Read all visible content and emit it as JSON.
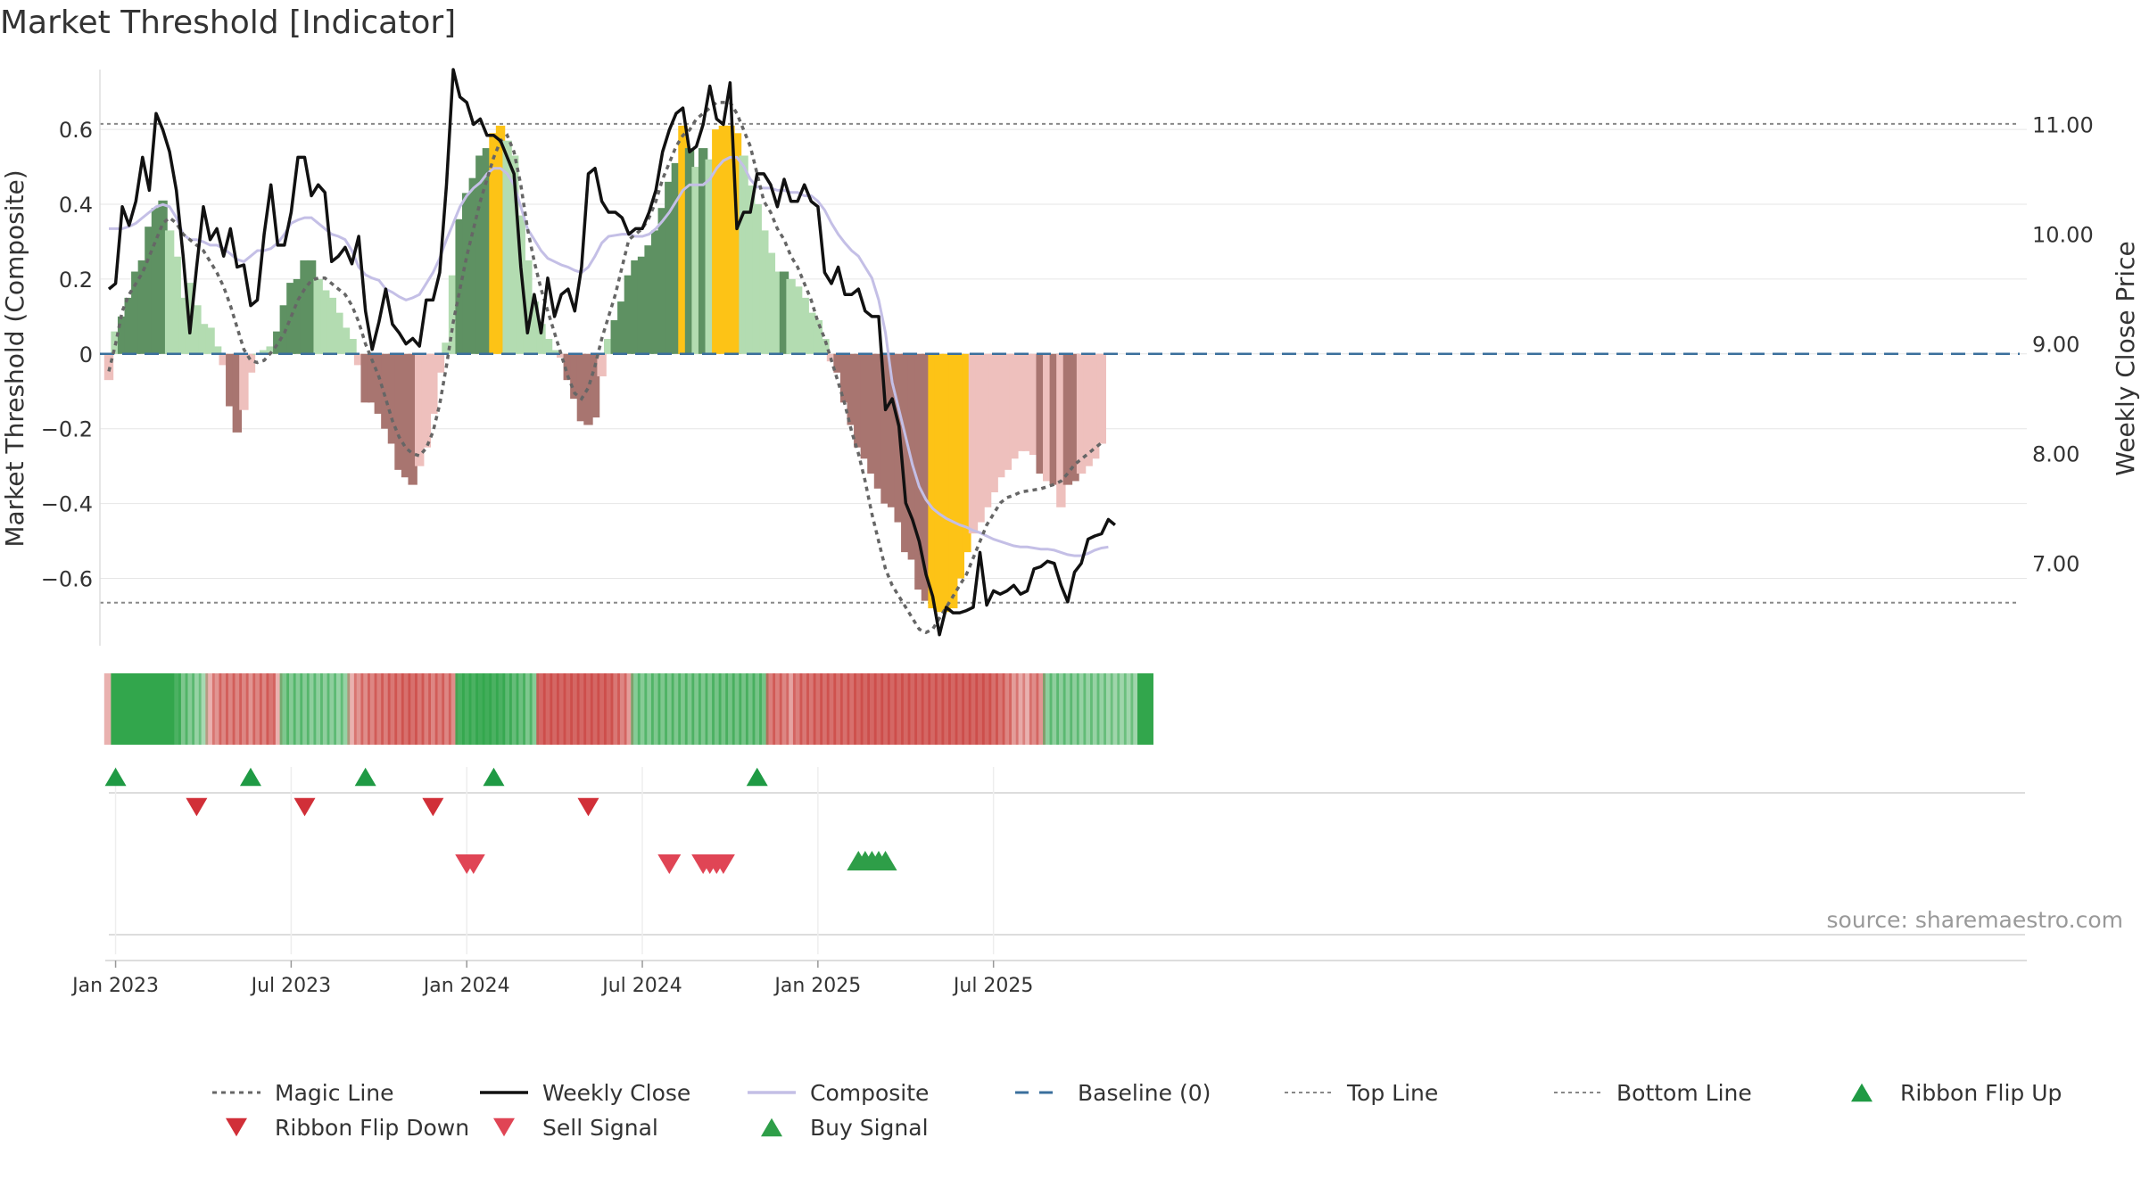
{
  "chart_data": {
    "type": "bar",
    "title": "Market Threshold [Indicator]",
    "ylabel_left": "Market Threshold (Composite)",
    "ylabel_right": "Weekly Close Price",
    "source": "source: sharemaestro.com",
    "ylim_left": [
      -0.78,
      0.76
    ],
    "ylim_right": [
      6.25,
      11.5
    ],
    "yticks_left": [
      {
        "v": 0.6,
        "label": "0.6"
      },
      {
        "v": 0.4,
        "label": "0.4"
      },
      {
        "v": 0.2,
        "label": "0.2"
      },
      {
        "v": 0,
        "label": "0"
      },
      {
        "v": -0.2,
        "label": "−0.2"
      },
      {
        "v": -0.4,
        "label": "−0.4"
      },
      {
        "v": -0.6,
        "label": "−0.6"
      }
    ],
    "yticks_right": [
      {
        "v": 11.0,
        "label": "11.00"
      },
      {
        "v": 10.0,
        "label": "10.00"
      },
      {
        "v": 9.0,
        "label": "9.00"
      },
      {
        "v": 8.0,
        "label": "8.00"
      },
      {
        "v": 7.0,
        "label": "7.00"
      }
    ],
    "xticks": [
      {
        "week": 1,
        "label": "Jan 2023"
      },
      {
        "week": 27,
        "label": "Jul 2023"
      },
      {
        "week": 53,
        "label": "Jan 2024"
      },
      {
        "week": 79,
        "label": "Jul 2024"
      },
      {
        "week": 105,
        "label": "Jan 2025"
      },
      {
        "week": 131,
        "label": "Jul 2025"
      }
    ],
    "top_line": 0.615,
    "bottom_line": -0.665,
    "composite_bars": [
      -0.07,
      0.06,
      0.1,
      0.15,
      0.22,
      0.25,
      0.34,
      0.39,
      0.41,
      0.33,
      0.26,
      0.15,
      0.19,
      0.13,
      0.08,
      0.07,
      0.02,
      -0.03,
      -0.14,
      -0.21,
      -0.15,
      -0.05,
      0.0,
      0.01,
      0.02,
      0.06,
      0.13,
      0.19,
      0.2,
      0.25,
      0.25,
      0.2,
      0.17,
      0.15,
      0.11,
      0.07,
      0.04,
      -0.03,
      -0.13,
      -0.13,
      -0.16,
      -0.2,
      -0.24,
      -0.31,
      -0.33,
      -0.35,
      -0.3,
      -0.25,
      -0.16,
      -0.05,
      0.03,
      0.21,
      0.36,
      0.43,
      0.47,
      0.53,
      0.55,
      0.59,
      0.61,
      0.57,
      0.53,
      0.37,
      0.25,
      0.14,
      0.08,
      0.04,
      0.01,
      -0.01,
      -0.07,
      -0.12,
      -0.18,
      -0.19,
      -0.17,
      -0.06,
      0.04,
      0.09,
      0.14,
      0.21,
      0.25,
      0.26,
      0.29,
      0.33,
      0.39,
      0.46,
      0.51,
      0.61,
      0.55,
      0.5,
      0.55,
      0.52,
      0.6,
      0.61,
      0.61,
      0.59,
      0.53,
      0.45,
      0.4,
      0.33,
      0.27,
      0.22,
      0.22,
      0.2,
      0.18,
      0.15,
      0.11,
      0.09,
      0.04,
      -0.02,
      -0.05,
      -0.13,
      -0.19,
      -0.25,
      -0.28,
      -0.32,
      -0.36,
      -0.4,
      -0.41,
      -0.45,
      -0.53,
      -0.55,
      -0.63,
      -0.66,
      -0.68,
      -0.69,
      -0.69,
      -0.68,
      -0.6,
      -0.53,
      -0.48,
      -0.45,
      -0.41,
      -0.37,
      -0.33,
      -0.31,
      -0.28,
      -0.26,
      -0.26,
      -0.27,
      -0.32,
      -0.34,
      -0.35,
      -0.41,
      -0.35,
      -0.34,
      -0.32,
      -0.3,
      -0.28,
      -0.24
    ],
    "bar_category": [
      "n",
      "L",
      "D",
      "D",
      "D",
      "D",
      "D",
      "D",
      "D",
      "L",
      "L",
      "L",
      "L",
      "L",
      "L",
      "L",
      "L",
      "n",
      "N",
      "N",
      "n",
      "n",
      "L",
      "L",
      "L",
      "D",
      "D",
      "D",
      "D",
      "D",
      "D",
      "L",
      "L",
      "L",
      "L",
      "L",
      "L",
      "n",
      "N",
      "N",
      "N",
      "N",
      "N",
      "N",
      "N",
      "N",
      "n",
      "n",
      "n",
      "n",
      "L",
      "L",
      "D",
      "D",
      "D",
      "D",
      "D",
      "Y",
      "Y",
      "L",
      "L",
      "L",
      "L",
      "L",
      "L",
      "L",
      "L",
      "n",
      "N",
      "N",
      "N",
      "N",
      "N",
      "n",
      "L",
      "D",
      "D",
      "D",
      "D",
      "D",
      "D",
      "D",
      "D",
      "D",
      "D",
      "Y",
      "D",
      "L",
      "D",
      "L",
      "Y",
      "Y",
      "Y",
      "Y",
      "L",
      "L",
      "L",
      "L",
      "L",
      "L",
      "D",
      "L",
      "L",
      "L",
      "L",
      "L",
      "L",
      "n",
      "N",
      "N",
      "N",
      "N",
      "N",
      "N",
      "N",
      "N",
      "N",
      "N",
      "N",
      "N",
      "N",
      "N",
      "Y",
      "Y",
      "Y",
      "Y",
      "Y",
      "Y",
      "n",
      "n",
      "n",
      "n",
      "n",
      "n",
      "n",
      "n",
      "n",
      "n",
      "N",
      "n",
      "N",
      "n",
      "N",
      "N",
      "n",
      "n",
      "n",
      "n",
      "n",
      "n"
    ],
    "weekly_close": [
      9.5,
      9.55,
      10.25,
      10.08,
      10.3,
      10.7,
      10.4,
      11.1,
      10.95,
      10.75,
      10.4,
      9.8,
      9.1,
      9.7,
      10.25,
      9.95,
      10.05,
      9.8,
      10.05,
      9.7,
      9.72,
      9.35,
      9.4,
      10.0,
      10.45,
      9.9,
      9.9,
      10.2,
      10.7,
      10.7,
      10.35,
      10.45,
      10.38,
      9.75,
      9.8,
      9.88,
      9.73,
      9.98,
      9.3,
      8.95,
      9.2,
      9.5,
      9.18,
      9.1,
      9.0,
      9.05,
      8.98,
      9.4,
      9.4,
      9.65,
      10.45,
      11.5,
      11.25,
      11.2,
      11.0,
      11.05,
      10.9,
      10.9,
      10.85,
      10.7,
      10.55,
      9.7,
      9.1,
      9.45,
      9.1,
      9.6,
      9.25,
      9.45,
      9.5,
      9.3,
      9.7,
      10.55,
      10.6,
      10.3,
      10.2,
      10.2,
      10.15,
      10.0,
      10.05,
      10.05,
      10.2,
      10.4,
      10.75,
      10.95,
      11.1,
      11.15,
      10.75,
      10.8,
      11.0,
      11.35,
      11.05,
      11.0,
      11.38,
      10.05,
      10.2,
      10.2,
      10.55,
      10.55,
      10.45,
      10.25,
      10.5,
      10.3,
      10.3,
      10.45,
      10.3,
      10.25,
      9.65,
      9.55,
      9.7,
      9.45,
      9.45,
      9.5,
      9.3,
      9.25,
      9.25,
      8.4,
      8.5,
      8.25,
      7.55,
      7.4,
      7.2,
      6.9,
      6.7,
      6.35,
      6.6,
      6.55,
      6.55,
      6.57,
      6.6,
      7.1,
      6.62,
      6.75,
      6.72,
      6.75,
      6.8,
      6.72,
      6.75,
      6.95,
      6.97,
      7.02,
      7.0,
      6.8,
      6.65,
      6.92,
      7.0,
      7.22,
      7.25,
      7.27,
      7.4,
      7.35
    ],
    "composite_line": [
      10.05,
      10.05,
      10.05,
      10.07,
      10.1,
      10.15,
      10.2,
      10.25,
      10.27,
      10.25,
      10.15,
      10.0,
      9.95,
      9.95,
      9.93,
      9.9,
      9.9,
      9.87,
      9.82,
      9.77,
      9.75,
      9.8,
      9.85,
      9.85,
      9.87,
      9.92,
      10.0,
      10.1,
      10.13,
      10.15,
      10.15,
      10.1,
      10.05,
      10.0,
      9.98,
      9.95,
      9.85,
      9.7,
      9.63,
      9.6,
      9.58,
      9.5,
      9.47,
      9.43,
      9.4,
      9.42,
      9.45,
      9.55,
      9.65,
      9.78,
      9.95,
      10.1,
      10.25,
      10.35,
      10.42,
      10.47,
      10.55,
      10.6,
      10.6,
      10.55,
      10.45,
      10.25,
      10.05,
      9.95,
      9.85,
      9.78,
      9.75,
      9.72,
      9.7,
      9.67,
      9.65,
      9.7,
      9.8,
      9.92,
      9.98,
      9.99,
      10.0,
      10.0,
      9.98,
      9.98,
      10.0,
      10.05,
      10.12,
      10.2,
      10.3,
      10.4,
      10.45,
      10.45,
      10.45,
      10.5,
      10.6,
      10.67,
      10.7,
      10.7,
      10.62,
      10.5,
      10.43,
      10.42,
      10.42,
      10.4,
      10.4,
      10.38,
      10.38,
      10.35,
      10.35,
      10.3,
      10.22,
      10.1,
      10.0,
      9.92,
      9.85,
      9.8,
      9.7,
      9.6,
      9.4,
      9.1,
      8.65,
      8.4,
      8.15,
      7.9,
      7.7,
      7.58,
      7.5,
      7.45,
      7.41,
      7.38,
      7.35,
      7.33,
      7.3,
      7.28,
      7.25,
      7.22,
      7.2,
      7.18,
      7.16,
      7.15,
      7.15,
      7.14,
      7.13,
      7.13,
      7.12,
      7.1,
      7.08,
      7.07,
      7.07,
      7.09,
      7.12,
      7.14,
      7.15
    ],
    "magic_line": [
      8.75,
      9.0,
      9.3,
      9.45,
      9.55,
      9.65,
      9.8,
      9.95,
      10.1,
      10.15,
      10.1,
      10.0,
      9.95,
      9.9,
      9.85,
      9.75,
      9.65,
      9.52,
      9.35,
      9.15,
      8.95,
      8.85,
      8.83,
      8.85,
      8.92,
      9.0,
      9.1,
      9.25,
      9.4,
      9.5,
      9.58,
      9.6,
      9.6,
      9.55,
      9.5,
      9.45,
      9.35,
      9.2,
      9.0,
      8.85,
      8.7,
      8.5,
      8.3,
      8.15,
      8.05,
      8.0,
      7.98,
      8.05,
      8.2,
      8.45,
      8.8,
      9.2,
      9.5,
      9.8,
      10.05,
      10.3,
      10.5,
      10.7,
      10.85,
      10.9,
      10.75,
      10.45,
      10.05,
      9.75,
      9.5,
      9.3,
      9.1,
      8.9,
      8.7,
      8.55,
      8.5,
      8.6,
      8.8,
      9.05,
      9.25,
      9.45,
      9.7,
      9.95,
      10.0,
      10.05,
      10.15,
      10.3,
      10.5,
      10.65,
      10.8,
      10.9,
      10.95,
      11.05,
      11.1,
      11.15,
      11.2,
      11.2,
      11.2,
      11.1,
      10.95,
      10.8,
      10.55,
      10.3,
      10.2,
      10.05,
      9.95,
      9.8,
      9.7,
      9.55,
      9.4,
      9.2,
      9.05,
      8.85,
      8.65,
      8.45,
      8.2,
      8.0,
      7.75,
      7.45,
      7.2,
      6.95,
      6.8,
      6.7,
      6.6,
      6.5,
      6.4,
      6.37,
      6.4,
      6.5,
      6.6,
      6.7,
      6.8,
      6.9,
      7.05,
      7.2,
      7.35,
      7.45,
      7.55,
      7.6,
      7.62,
      7.65,
      7.66,
      7.67,
      7.68,
      7.7,
      7.72,
      7.75,
      7.82,
      7.9,
      7.95,
      8.0,
      8.05,
      8.1
    ],
    "ribbon_sign": [
      -1,
      1,
      1,
      1,
      1,
      1,
      1,
      1,
      1,
      1,
      1,
      1,
      1,
      1,
      1,
      -1,
      -1,
      -1,
      -1,
      -1,
      -1,
      -1,
      -1,
      -1,
      -1,
      -1,
      1,
      1,
      1,
      1,
      1,
      1,
      1,
      1,
      1,
      1,
      -1,
      -1,
      -1,
      -1,
      -1,
      -1,
      -1,
      -1,
      -1,
      -1,
      -1,
      -1,
      -1,
      -1,
      -1,
      -1,
      1,
      1,
      1,
      1,
      1,
      1,
      1,
      1,
      1,
      1,
      1,
      1,
      -1,
      -1,
      -1,
      -1,
      -1,
      -1,
      -1,
      -1,
      -1,
      -1,
      -1,
      -1,
      -1,
      -1,
      1,
      1,
      1,
      1,
      1,
      1,
      1,
      1,
      1,
      1,
      1,
      1,
      1,
      1,
      1,
      1,
      1,
      1,
      1,
      1,
      -1,
      -1,
      -1,
      -1,
      -1,
      -1,
      -1,
      -1,
      -1,
      -1,
      -1,
      -1,
      -1,
      -1,
      -1,
      -1,
      -1,
      -1,
      -1,
      -1,
      -1,
      -1,
      -1,
      -1,
      -1,
      -1,
      -1,
      -1,
      -1,
      -1,
      -1,
      -1,
      -1,
      -1,
      -1,
      -1,
      -1,
      -1,
      -1,
      -1,
      -1,
      1,
      1,
      1,
      1,
      1,
      1,
      1,
      1,
      1,
      1,
      1,
      1,
      1,
      1,
      1,
      1
    ],
    "ribbon_strength": [
      0.3,
      1,
      1,
      1,
      1,
      1,
      1,
      1,
      1,
      1,
      0.85,
      0.55,
      0.5,
      0.4,
      0.3,
      0.3,
      0.5,
      0.6,
      0.6,
      0.6,
      0.6,
      0.5,
      0.6,
      0.6,
      0.7,
      0.3,
      0.55,
      0.5,
      0.5,
      0.5,
      0.45,
      0.45,
      0.45,
      0.45,
      0.4,
      0.4,
      0.3,
      0.5,
      0.55,
      0.6,
      0.65,
      0.65,
      0.7,
      0.7,
      0.75,
      0.75,
      0.7,
      0.65,
      0.6,
      0.65,
      0.6,
      0.55,
      0.85,
      0.85,
      0.85,
      0.9,
      0.9,
      0.85,
      0.85,
      0.75,
      0.7,
      0.65,
      0.55,
      0.5,
      0.8,
      0.8,
      0.8,
      0.8,
      0.8,
      0.8,
      0.8,
      0.8,
      0.8,
      0.8,
      0.8,
      0.7,
      0.6,
      0.45,
      0.5,
      0.5,
      0.5,
      0.55,
      0.55,
      0.55,
      0.55,
      0.55,
      0.55,
      0.55,
      0.55,
      0.55,
      0.6,
      0.6,
      0.6,
      0.6,
      0.6,
      0.6,
      0.6,
      0.6,
      0.65,
      0.65,
      0.6,
      0.4,
      0.65,
      0.7,
      0.7,
      0.75,
      0.75,
      0.75,
      0.75,
      0.75,
      0.75,
      0.8,
      0.8,
      0.8,
      0.8,
      0.8,
      0.8,
      0.8,
      0.8,
      0.8,
      0.8,
      0.8,
      0.8,
      0.8,
      0.8,
      0.8,
      0.8,
      0.8,
      0.8,
      0.8,
      0.8,
      0.75,
      0.7,
      0.6,
      0.45,
      0.35,
      0.3,
      0.55,
      0.5,
      0.45,
      0.45,
      0.45,
      0.45,
      0.45,
      0.4,
      0.4,
      0.4,
      0.4,
      0.35,
      0.35,
      0.35,
      0.35,
      0.35
    ],
    "ribbon_flip_up_weeks": [
      1,
      21,
      38,
      57,
      96
    ],
    "ribbon_flip_down_weeks": [
      13,
      29,
      48,
      71
    ],
    "sell_signal_weeks": [
      53,
      54,
      83,
      88,
      89,
      90,
      91
    ],
    "buy_signal_weeks": [
      111,
      112,
      113,
      114,
      115
    ],
    "legend": [
      {
        "label": "Magic Line",
        "kind": "dotted",
        "color": "#666666"
      },
      {
        "label": "Weekly Close",
        "kind": "solid",
        "color": "#111111"
      },
      {
        "label": "Composite",
        "kind": "solid",
        "color": "#c4bfe6"
      },
      {
        "label": "Baseline (0)",
        "kind": "dashed",
        "color": "#3a6f9c"
      },
      {
        "label": "Top Line",
        "kind": "dotted-thin",
        "color": "#888888"
      },
      {
        "label": "Bottom Line",
        "kind": "dotted-thin",
        "color": "#888888"
      },
      {
        "label": "Ribbon Flip Up",
        "kind": "triangle-up",
        "color": "#1f9a44"
      },
      {
        "label": "Ribbon Flip Down",
        "kind": "triangle-down",
        "color": "#d12f38"
      },
      {
        "label": "Sell Signal",
        "kind": "triangle-down",
        "color": "#e04555"
      },
      {
        "label": "Buy Signal",
        "kind": "triangle-up",
        "color": "#2e9e48"
      }
    ],
    "colors": {
      "dark_green": "#5e9162",
      "light_green": "#b3dcb1",
      "dark_red": "#a87570",
      "light_red": "#eec0bd",
      "yellow": "#fdc316",
      "ribbon_green": "#32a64c",
      "ribbon_red": "#cc4a46",
      "grid": "#e6e6e6",
      "text": "#333333"
    }
  }
}
